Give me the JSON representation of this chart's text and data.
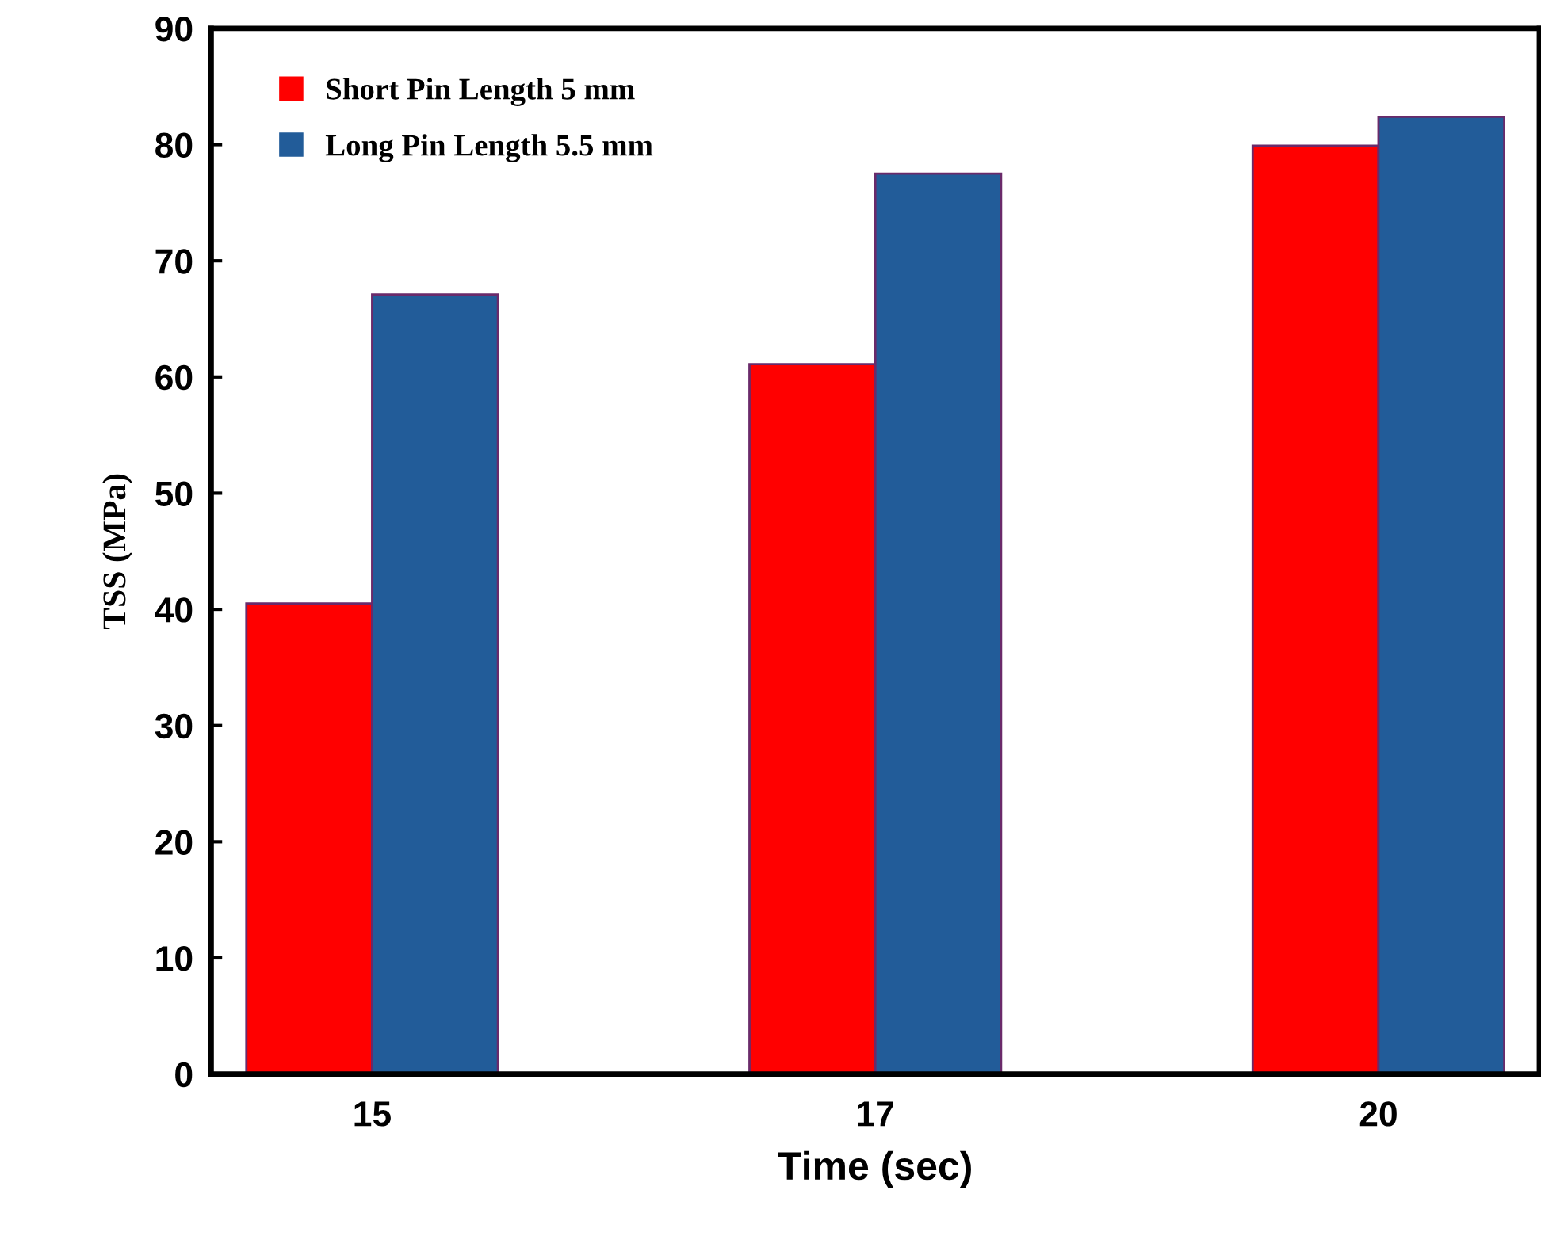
{
  "chart_data": {
    "type": "bar",
    "xlabel": "Time (sec)",
    "ylabel": "TSS (MPa)",
    "categories": [
      "15",
      "17",
      "20"
    ],
    "series": [
      {
        "name": "Short Pin Length 5 mm",
        "color": "#ff0000",
        "values": [
          40.5,
          61.1,
          79.9
        ]
      },
      {
        "name": "Long Pin Length 5.5 mm",
        "color": "#225c99",
        "values": [
          67.1,
          77.5,
          82.4
        ]
      }
    ],
    "ylim": [
      0,
      90
    ],
    "yticks": [
      0,
      10,
      20,
      30,
      40,
      50,
      60,
      70,
      80,
      90
    ],
    "grid": false,
    "legend": "top left"
  }
}
